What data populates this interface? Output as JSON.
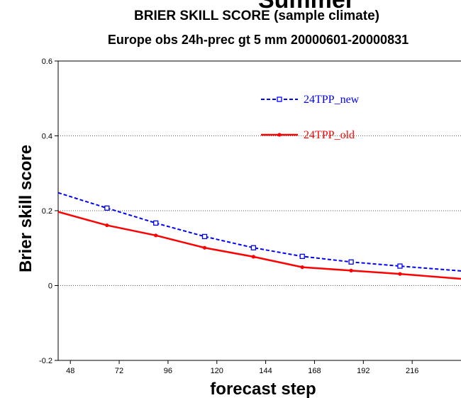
{
  "chart_data": {
    "type": "line",
    "title": "Summer",
    "subtitle1": "BRIER SKILL SCORE (sample climate)",
    "subtitle2": "Europe obs  24h-prec gt 5 mm 20000601-20000831",
    "xlabel": "forecast step",
    "ylabel": "Brier skill score",
    "xlim": [
      42,
      240
    ],
    "ylim": [
      -0.2,
      0.6
    ],
    "xticks": [
      48,
      72,
      96,
      120,
      144,
      168,
      192,
      216
    ],
    "yticks": [
      -0.2,
      0,
      0.2,
      0.4,
      0.6
    ],
    "ytick_labels": [
      "-0.2",
      "0",
      "0.2",
      "0.4",
      "0.6"
    ],
    "grid": "horizontal dotted",
    "legend_position": "top-right",
    "x": [
      42,
      66,
      90,
      114,
      138,
      162,
      186,
      210,
      240
    ],
    "series": [
      {
        "name": "24TPP_new",
        "color": "#0000ff",
        "style": "dashed",
        "marker": "open-square",
        "values": [
          0.248,
          0.207,
          0.167,
          0.131,
          0.101,
          0.078,
          0.063,
          0.052,
          0.039
        ]
      },
      {
        "name": "24TPP_old",
        "color": "#ff0000",
        "style": "solid",
        "marker": "filled-dot",
        "values": [
          0.197,
          0.161,
          0.134,
          0.101,
          0.077,
          0.049,
          0.04,
          0.031,
          0.018
        ]
      }
    ]
  }
}
